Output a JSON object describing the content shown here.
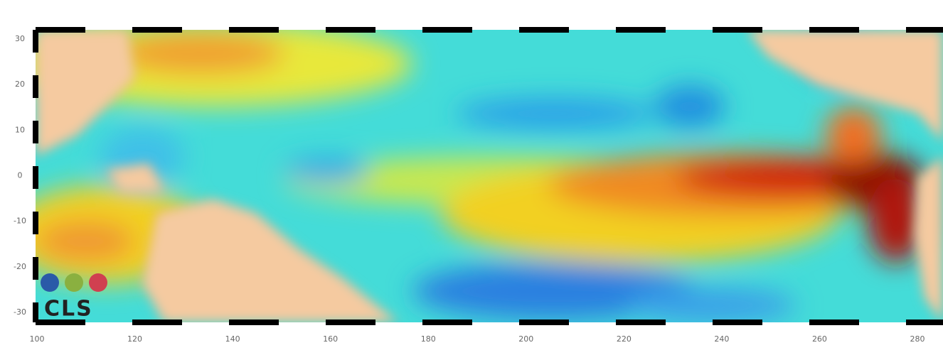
{
  "map": {
    "x_labels": [
      "100",
      "120",
      "140",
      "160",
      "180",
      "200",
      "220",
      "240",
      "260",
      "280"
    ],
    "y_labels": [
      "30",
      "20",
      "10",
      "0",
      "-10",
      "-20",
      "-30"
    ],
    "logo": "CLS"
  }
}
